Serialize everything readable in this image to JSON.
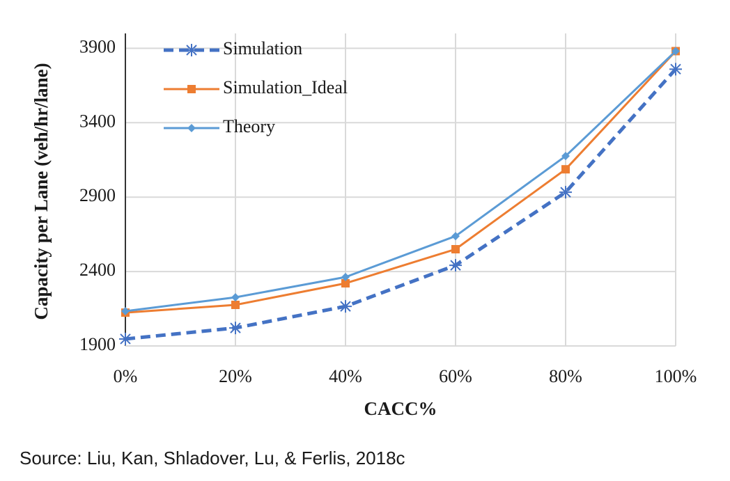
{
  "chart_data": {
    "type": "line",
    "x_label": "CACC%",
    "y_label": "Capacity per Lane (veh/hr/lane)",
    "categories": [
      "0%",
      "20%",
      "40%",
      "60%",
      "80%",
      "100%"
    ],
    "series": [
      {
        "name": "Simulation",
        "color": "#4472c4",
        "marker": "asterisk",
        "dashed": true,
        "values": [
          1947,
          2021,
          2166,
          2442,
          2933,
          3760
        ]
      },
      {
        "name": "Simulation_Ideal",
        "color": "#ed7d31",
        "marker": "square",
        "dashed": false,
        "values": [
          2124,
          2176,
          2321,
          2550,
          3087,
          3881
        ]
      },
      {
        "name": "Theory",
        "color": "#5b9bd5",
        "marker": "diamond",
        "dashed": false,
        "values": [
          2134,
          2227,
          2363,
          2638,
          3176,
          3881
        ]
      }
    ],
    "ylim": [
      1900,
      4000
    ],
    "yticks": [
      1900,
      2400,
      2900,
      3400,
      3900
    ],
    "grid": true,
    "legend": "top-left",
    "source": "Source: Liu, Kan, Shladover, Lu, & Ferlis, 2018c"
  }
}
